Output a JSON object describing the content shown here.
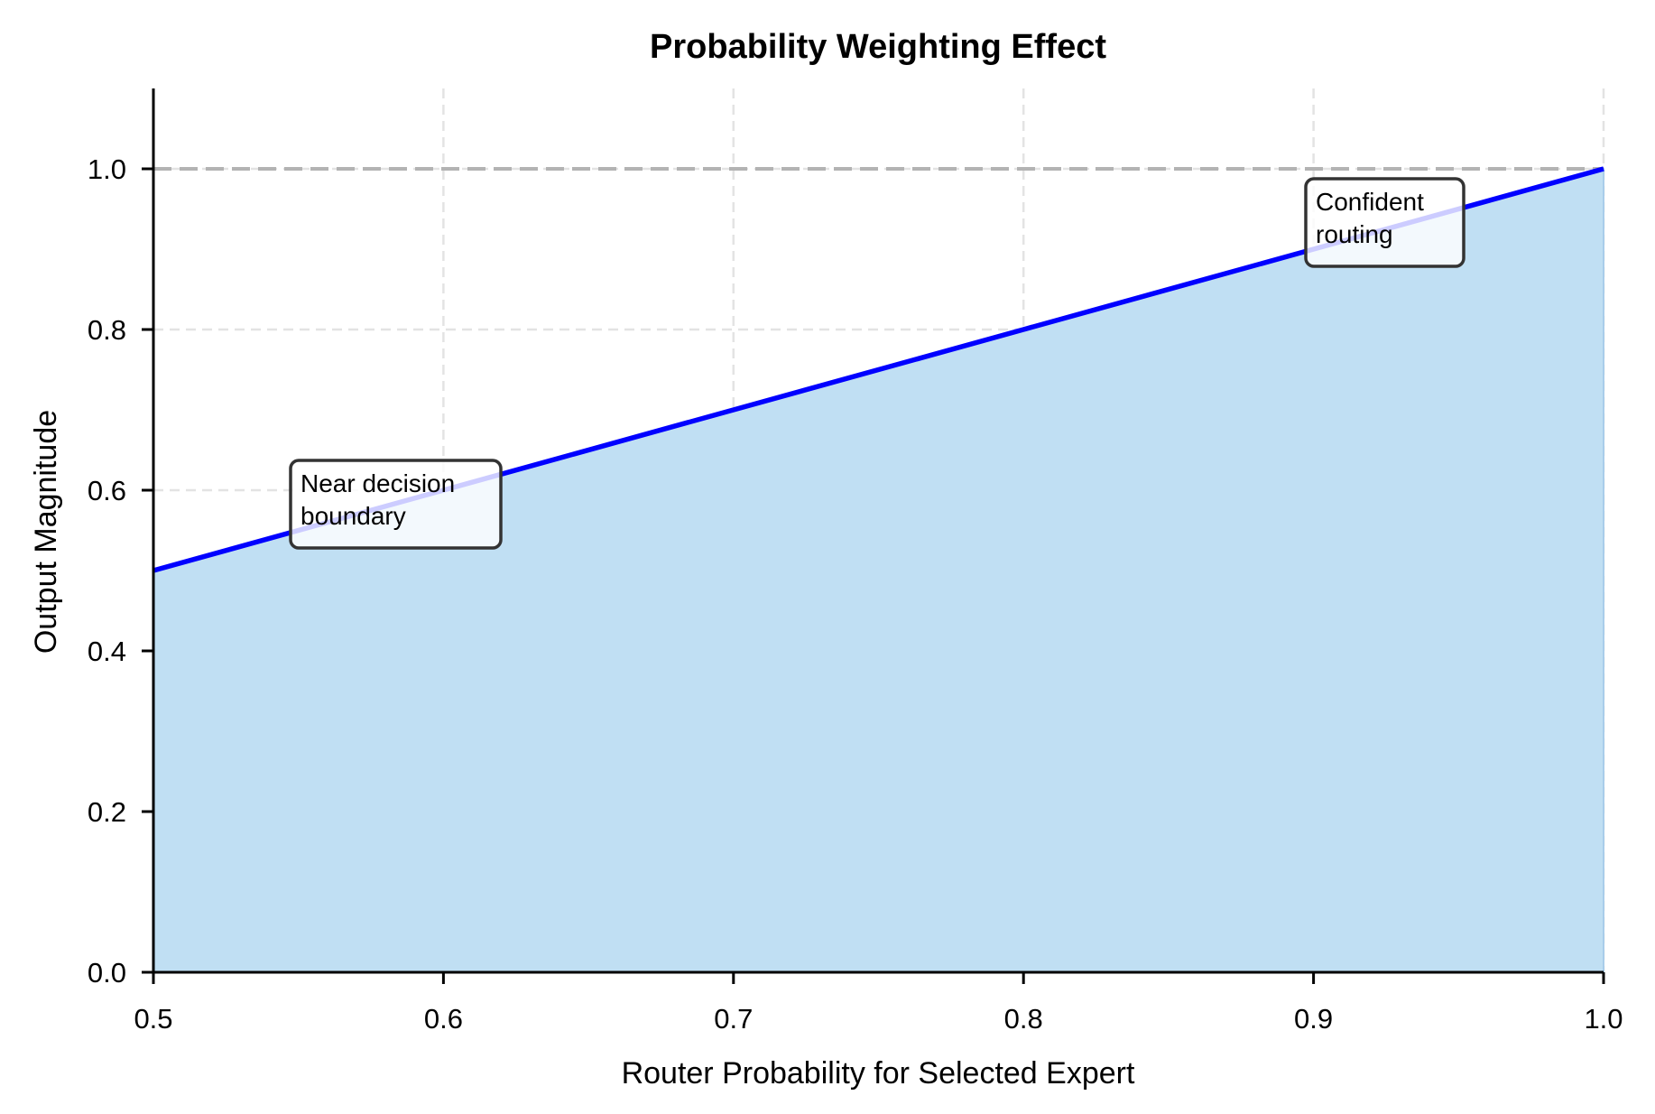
{
  "chart_data": {
    "type": "area",
    "title": "Probability Weighting Effect",
    "xlabel": "Router Probability for Selected Expert",
    "ylabel": "Output Magnitude",
    "xlim": [
      0.5,
      1.0
    ],
    "ylim": [
      0.0,
      1.1
    ],
    "xticks": [
      0.5,
      0.6,
      0.7,
      0.8,
      0.9,
      1.0
    ],
    "xtick_labels": [
      "0.5",
      "0.6",
      "0.7",
      "0.8",
      "0.9",
      "1.0"
    ],
    "yticks": [
      0.0,
      0.2,
      0.4,
      0.6,
      0.8,
      1.0
    ],
    "ytick_labels": [
      "0.0",
      "0.2",
      "0.4",
      "0.6",
      "0.8",
      "1.0"
    ],
    "grid": true,
    "legend": null,
    "series": [
      {
        "name": "Output Magnitude",
        "x": [
          0.5,
          0.6,
          0.7,
          0.8,
          0.9,
          1.0
        ],
        "y": [
          0.5,
          0.6,
          0.7,
          0.8,
          0.9,
          1.0
        ],
        "line_color": "#0000ff",
        "fill_color": "#c0dff3",
        "filled_to_zero": true
      }
    ],
    "reference_lines": [
      {
        "type": "horizontal",
        "y": 1.0,
        "style": "dashed",
        "color": "#b3b3b3"
      }
    ],
    "annotations": [
      {
        "text": [
          "Near decision",
          "boundary"
        ],
        "x": 0.55,
        "y": 0.55
      },
      {
        "text": [
          "Confident",
          "routing"
        ],
        "x": 0.9,
        "y": 0.9
      }
    ]
  }
}
